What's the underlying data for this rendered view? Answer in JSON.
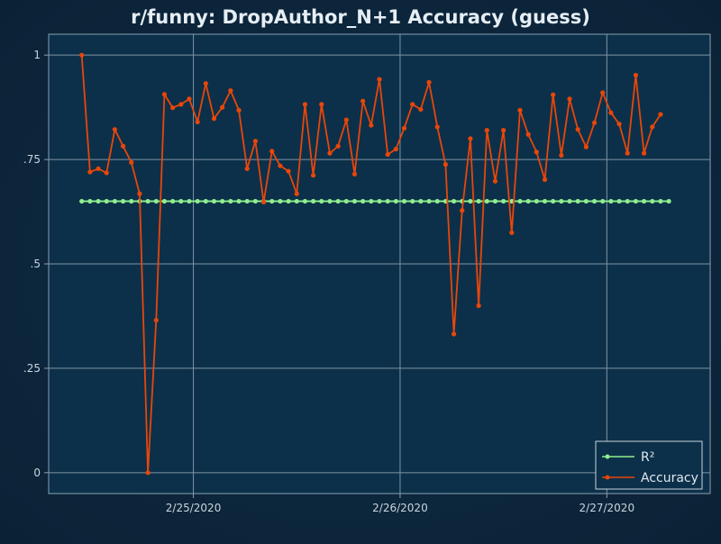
{
  "chart_data": {
    "type": "line",
    "title": "r/funny: DropAuthor_N+1 Accuracy (guess)",
    "xlabel": "",
    "ylabel": "",
    "ylim": [
      -0.05,
      1.05
    ],
    "yticks": [
      {
        "value": 0,
        "label": "0"
      },
      {
        "value": 0.25,
        "label": ".25"
      },
      {
        "value": 0.5,
        "label": ".5"
      },
      {
        "value": 0.75,
        "label": ".75"
      },
      {
        "value": 1,
        "label": "1"
      }
    ],
    "xrange_index": [
      -4,
      76
    ],
    "xticks": [
      {
        "index": 13.5,
        "label": "2/25/2020"
      },
      {
        "index": 38.5,
        "label": "2/26/2020"
      },
      {
        "index": 63.5,
        "label": "2/27/2020"
      }
    ],
    "grid": true,
    "legend_position": "bottom-right",
    "series": [
      {
        "name": "R²",
        "color": "#90ee90",
        "values": [
          0.65,
          0.65,
          0.65,
          0.65,
          0.65,
          0.65,
          0.65,
          0.65,
          0.65,
          0.65,
          0.65,
          0.65,
          0.65,
          0.65,
          0.65,
          0.65,
          0.65,
          0.65,
          0.65,
          0.65,
          0.65,
          0.65,
          0.65,
          0.65,
          0.65,
          0.65,
          0.65,
          0.65,
          0.65,
          0.65,
          0.65,
          0.65,
          0.65,
          0.65,
          0.65,
          0.65,
          0.65,
          0.65,
          0.65,
          0.65,
          0.65,
          0.65,
          0.65,
          0.65,
          0.65,
          0.65,
          0.65,
          0.65,
          0.65,
          0.65,
          0.65,
          0.65,
          0.65,
          0.65,
          0.65,
          0.65,
          0.65,
          0.65,
          0.65,
          0.65,
          0.65,
          0.65,
          0.65,
          0.65,
          0.65,
          0.65,
          0.65,
          0.65,
          0.65,
          0.65,
          0.65,
          0.65
        ]
      },
      {
        "name": "Accuracy",
        "color": "#e8460a",
        "values": [
          1.0,
          0.72,
          0.728,
          0.718,
          0.822,
          0.782,
          0.743,
          0.668,
          0.0,
          0.365,
          0.906,
          0.874,
          0.882,
          0.895,
          0.84,
          0.932,
          0.848,
          0.875,
          0.915,
          0.868,
          0.728,
          0.794,
          0.648,
          0.77,
          0.735,
          0.722,
          0.668,
          0.882,
          0.712,
          0.882,
          0.765,
          0.782,
          0.845,
          0.715,
          0.89,
          0.832,
          0.942,
          0.762,
          0.775,
          0.825,
          0.882,
          0.87,
          0.935,
          0.828,
          0.738,
          0.332,
          0.628,
          0.8,
          0.4,
          0.82,
          0.698,
          0.82,
          0.575,
          0.868,
          0.81,
          0.768,
          0.702,
          0.905,
          0.76,
          0.895,
          0.822,
          0.78,
          0.838,
          0.91,
          0.862,
          0.835,
          0.765,
          0.952,
          0.765,
          0.828,
          0.858
        ]
      }
    ]
  }
}
